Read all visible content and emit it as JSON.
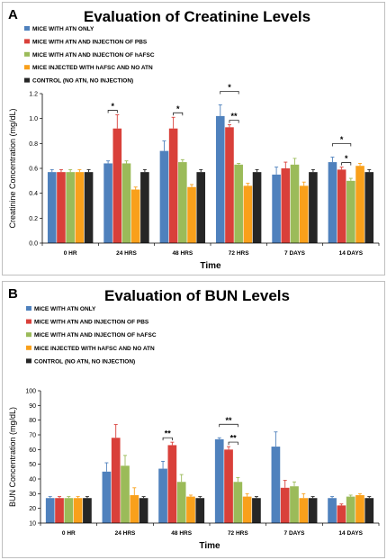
{
  "colors": [
    "#4f81bd",
    "#d9403a",
    "#9bbb59",
    "#f9a01b",
    "#262626"
  ],
  "chart_data": [
    {
      "type": "bar",
      "panel_label": "A",
      "title": "Evaluation of Creatinine Levels",
      "xlabel": "Time",
      "ylabel": "Creatinine Concentration (mg/dL)",
      "ylim": [
        0,
        1.2
      ],
      "yticks": [
        "0.0",
        "0.2",
        "0.4",
        "0.6",
        "0.8",
        "1.0",
        "1.2"
      ],
      "categories": [
        "0 HR",
        "24 HRS",
        "48 HRS",
        "72 HRS",
        "7 DAYS",
        "14 DAYS"
      ],
      "legend_position": "top-left",
      "series": [
        {
          "name": "MICE WITH ATN ONLY",
          "values": [
            0.57,
            0.64,
            0.74,
            1.02,
            0.55,
            0.65
          ],
          "errors": [
            0.02,
            0.02,
            0.08,
            0.09,
            0.06,
            0.04
          ]
        },
        {
          "name": "MICE WITH ATN AND INJECTION OF PBS",
          "values": [
            0.57,
            0.92,
            0.92,
            0.93,
            0.6,
            0.59
          ],
          "errors": [
            0.02,
            0.11,
            0.09,
            0.02,
            0.05,
            0.02
          ]
        },
        {
          "name": "MICE WITH ATN AND INJECTION OF hAFSC",
          "values": [
            0.57,
            0.64,
            0.65,
            0.63,
            0.63,
            0.5
          ],
          "errors": [
            0.02,
            0.02,
            0.02,
            0.01,
            0.05,
            0.02
          ]
        },
        {
          "name": "MICE INJECTED WITH hAFSC AND NO ATN",
          "values": [
            0.57,
            0.43,
            0.45,
            0.46,
            0.46,
            0.62
          ],
          "errors": [
            0.02,
            0.02,
            0.02,
            0.02,
            0.03,
            0.02
          ]
        },
        {
          "name": "CONTROL (NO ATN, NO INJECTION)",
          "values": [
            0.57,
            0.57,
            0.57,
            0.57,
            0.57,
            0.57
          ],
          "errors": [
            0.02,
            0.02,
            0.02,
            0.02,
            0.02,
            0.02
          ]
        }
      ],
      "annotations": [
        {
          "category": 1,
          "from": 0,
          "to": 1,
          "level": 0,
          "text": "*"
        },
        {
          "category": 2,
          "from": 1,
          "to": 2,
          "level": 0,
          "text": "*"
        },
        {
          "category": 3,
          "from": 0,
          "to": 2,
          "level": 1,
          "text": "*"
        },
        {
          "category": 3,
          "from": 1,
          "to": 2,
          "level": 0,
          "text": "**"
        },
        {
          "category": 5,
          "from": 0,
          "to": 2,
          "level": 1,
          "text": "*"
        },
        {
          "category": 5,
          "from": 1,
          "to": 2,
          "level": 0,
          "text": "*"
        }
      ]
    },
    {
      "type": "bar",
      "panel_label": "B",
      "title": "Evaluation of BUN Levels",
      "xlabel": "Time",
      "ylabel": "BUN Concentration (mg/dL)",
      "ylim": [
        10,
        100
      ],
      "yticks": [
        "10",
        "20",
        "30",
        "40",
        "50",
        "60",
        "70",
        "80",
        "90",
        "100"
      ],
      "categories": [
        "0 HR",
        "24 HRS",
        "48 HRS",
        "72 HRS",
        "7 DAYS",
        "14 DAYS"
      ],
      "legend_position": "top-left",
      "series": [
        {
          "name": "MICE WITH ATN ONLY",
          "values": [
            27,
            45,
            47,
            67,
            62,
            27
          ],
          "errors": [
            1,
            6,
            5,
            1,
            10,
            1
          ]
        },
        {
          "name": "MICE WITH ATN AND INJECTION OF PBS",
          "values": [
            27,
            68,
            63,
            60,
            34,
            22
          ],
          "errors": [
            1,
            9,
            2,
            2,
            5,
            1
          ]
        },
        {
          "name": "MICE WITH ATN AND INJECTION OF hAFSC",
          "values": [
            27,
            49,
            38,
            38,
            35,
            28
          ],
          "errors": [
            1,
            7,
            5,
            3,
            3,
            1
          ]
        },
        {
          "name": "MICE INJECTED WITH hAFSC AND NO ATN",
          "values": [
            27,
            29,
            28,
            28,
            27,
            29
          ],
          "errors": [
            1,
            5,
            1,
            2,
            3,
            1
          ]
        },
        {
          "name": "CONTROL (NO ATN, NO INJECTION)",
          "values": [
            27,
            27,
            27,
            27,
            27,
            27
          ],
          "errors": [
            1,
            1,
            1,
            1,
            1,
            1
          ]
        }
      ],
      "annotations": [
        {
          "category": 2,
          "from": 0,
          "to": 1,
          "level": 0,
          "text": "**"
        },
        {
          "category": 3,
          "from": 0,
          "to": 2,
          "level": 1,
          "text": "**"
        },
        {
          "category": 3,
          "from": 1,
          "to": 2,
          "level": 0,
          "text": "**"
        }
      ]
    }
  ]
}
